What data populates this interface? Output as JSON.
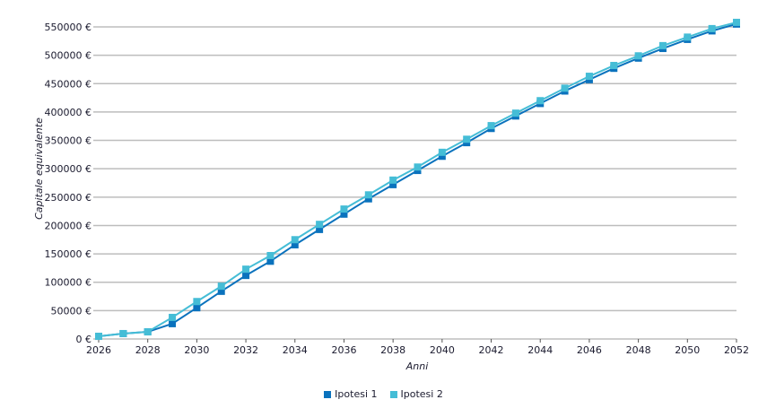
{
  "chart_data": {
    "type": "line",
    "title": "",
    "xlabel": "Anni",
    "ylabel": "Capitale equivalente",
    "x": [
      2026,
      2027,
      2028,
      2029,
      2030,
      2031,
      2032,
      2033,
      2034,
      2035,
      2036,
      2037,
      2038,
      2039,
      2040,
      2041,
      2042,
      2043,
      2044,
      2045,
      2046,
      2047,
      2048,
      2049,
      2050,
      2051,
      2052
    ],
    "xlim": [
      2026,
      2052
    ],
    "xticks": [
      "2026",
      "2028",
      "2030",
      "2032",
      "2034",
      "2036",
      "2038",
      "2040",
      "2042",
      "2044",
      "2046",
      "2048",
      "2050",
      "2052"
    ],
    "ylim": [
      0,
      550000
    ],
    "yticks": [
      "0 €",
      "50000 €",
      "100000 €",
      "150000 €",
      "200000 €",
      "250000 €",
      "300000 €",
      "350000 €",
      "400000 €",
      "450000 €",
      "500000 €",
      "550000 €"
    ],
    "grid": "horizontal",
    "legend_position": "bottom",
    "series": [
      {
        "name": "Ipotesi 1",
        "color": "#0a72bd",
        "values": [
          4700,
          9500,
          12600,
          27000,
          55000,
          84000,
          112000,
          137000,
          166000,
          193000,
          220000,
          247000,
          272000,
          297000,
          322000,
          346000,
          371000,
          393000,
          415000,
          437000,
          457000,
          477000,
          495000,
          512000,
          528000,
          543000,
          555000
        ]
      },
      {
        "name": "Ipotesi 2",
        "color": "#45bdd6",
        "values": [
          4700,
          9500,
          12600,
          38000,
          66000,
          93000,
          123000,
          147000,
          175000,
          202000,
          229000,
          254000,
          280000,
          303000,
          329000,
          352000,
          376000,
          398000,
          420000,
          442000,
          463000,
          482000,
          499000,
          517000,
          532000,
          547000,
          558000
        ]
      }
    ]
  }
}
